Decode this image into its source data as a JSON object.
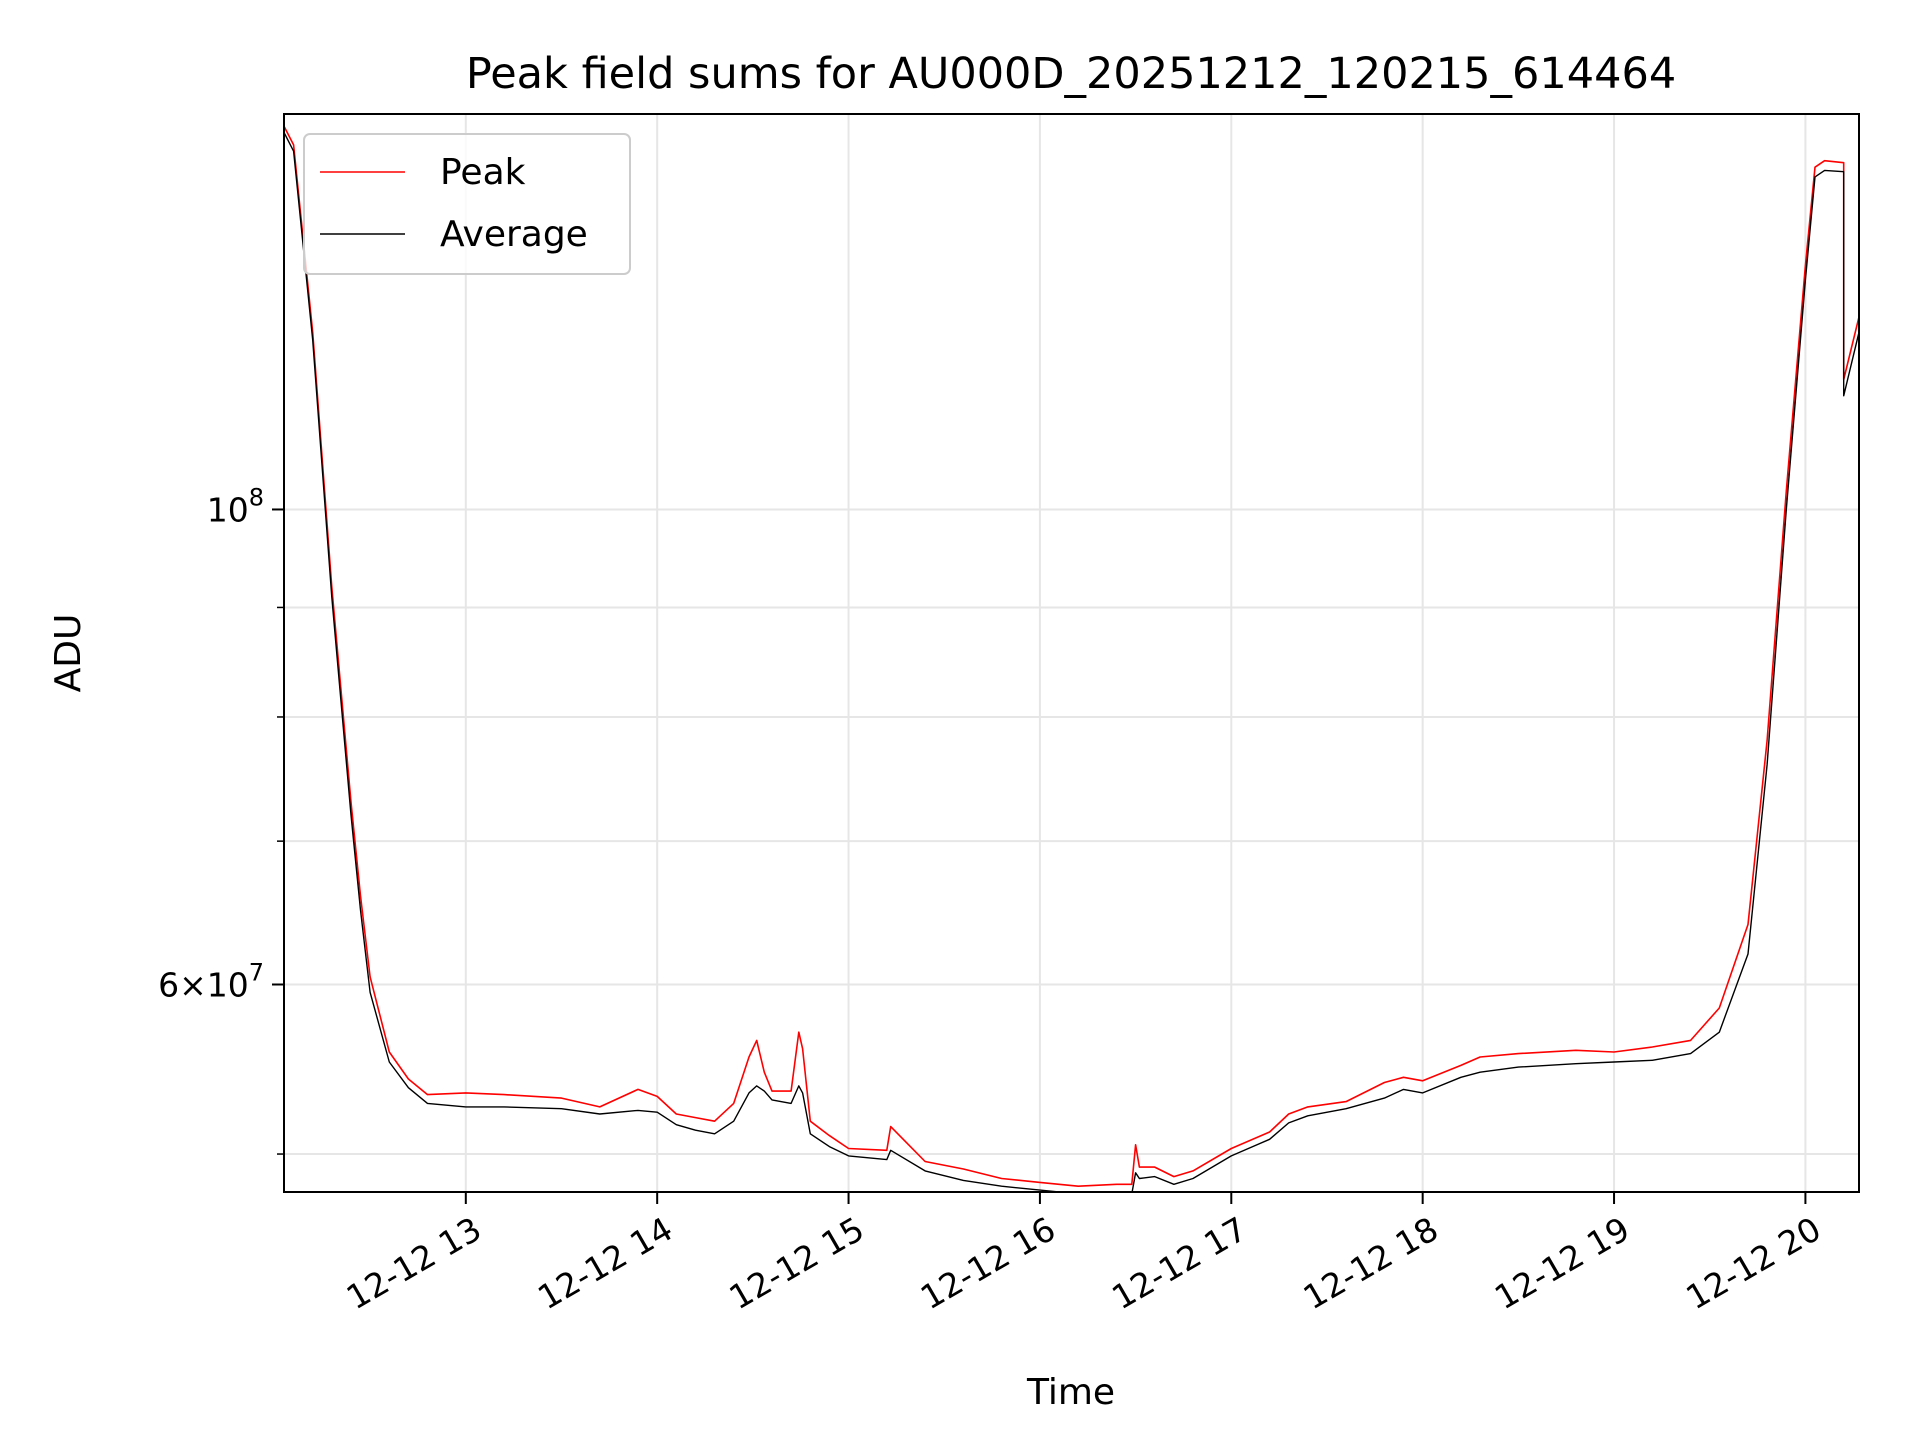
{
  "chart_data": {
    "type": "line",
    "title": "Peak field sums for AU000D_20251212_120215_614464",
    "xlabel": "Time",
    "ylabel": "ADU",
    "x_unit": "hours",
    "xlim": [
      12.05,
      20.28
    ],
    "ylim": [
      48000000,
      153000000
    ],
    "y_scale": "log",
    "grid": true,
    "legend_placement": "top-left",
    "x_ticks": [
      {
        "value": 13,
        "label": "12-12 13"
      },
      {
        "value": 14,
        "label": "12-12 14"
      },
      {
        "value": 15,
        "label": "12-12 15"
      },
      {
        "value": 16,
        "label": "12-12 16"
      },
      {
        "value": 17,
        "label": "12-12 17"
      },
      {
        "value": 18,
        "label": "12-12 18"
      },
      {
        "value": 19,
        "label": "12-12 19"
      },
      {
        "value": 20,
        "label": "12-12 20"
      }
    ],
    "y_major_ticks": [
      {
        "value": 60000000,
        "mantissa": "6",
        "exponent": "7"
      },
      {
        "value": 100000000,
        "mantissa": "",
        "exponent": "8"
      }
    ],
    "y_minor_ticks": [
      50000000,
      70000000,
      80000000,
      90000000
    ],
    "series": [
      {
        "name": "Peak",
        "color": "#ff0000",
        "x": [
          12.05,
          12.1,
          12.2,
          12.3,
          12.4,
          12.45,
          12.5,
          12.6,
          12.7,
          12.8,
          13.0,
          13.2,
          13.5,
          13.7,
          13.9,
          14.0,
          14.1,
          14.2,
          14.3,
          14.4,
          14.48,
          14.52,
          14.56,
          14.6,
          14.7,
          14.74,
          14.76,
          14.8,
          14.9,
          15.0,
          15.2,
          15.22,
          15.4,
          15.6,
          15.8,
          16.0,
          16.2,
          16.4,
          16.48,
          16.5,
          16.52,
          16.6,
          16.7,
          16.8,
          17.0,
          17.2,
          17.3,
          17.4,
          17.6,
          17.8,
          17.9,
          18.0,
          18.2,
          18.3,
          18.5,
          18.8,
          19.0,
          19.2,
          19.4,
          19.55,
          19.7,
          19.8,
          19.9,
          20.0,
          20.05,
          20.1,
          20.2,
          20.2,
          20.28
        ],
        "y": [
          151000000,
          148000000,
          121000000,
          92000000,
          73000000,
          66000000,
          60500000,
          55800000,
          54200000,
          53300000,
          53400000,
          53300000,
          53100000,
          52600000,
          53600000,
          53200000,
          52200000,
          52000000,
          51800000,
          52800000,
          55500000,
          56500000,
          54600000,
          53500000,
          53500000,
          57000000,
          56000000,
          51800000,
          51000000,
          50300000,
          50200000,
          51500000,
          49600000,
          49200000,
          48700000,
          48500000,
          48300000,
          48400000,
          48400000,
          50500000,
          49300000,
          49300000,
          48800000,
          49100000,
          50300000,
          51200000,
          52200000,
          52600000,
          52900000,
          54000000,
          54300000,
          54100000,
          55000000,
          55500000,
          55700000,
          55900000,
          55800000,
          56100000,
          56500000,
          58500000,
          64000000,
          78000000,
          102000000,
          130000000,
          144500000,
          145500000,
          145200000,
          115000000,
          123000000
        ]
      },
      {
        "name": "Average",
        "color": "#000000",
        "x": [
          12.05,
          12.1,
          12.2,
          12.3,
          12.4,
          12.45,
          12.5,
          12.6,
          12.7,
          12.8,
          13.0,
          13.2,
          13.5,
          13.7,
          13.9,
          14.0,
          14.1,
          14.2,
          14.3,
          14.4,
          14.48,
          14.52,
          14.56,
          14.6,
          14.7,
          14.74,
          14.76,
          14.8,
          14.9,
          15.0,
          15.2,
          15.22,
          15.4,
          15.6,
          15.8,
          16.0,
          16.2,
          16.4,
          16.48,
          16.5,
          16.52,
          16.6,
          16.7,
          16.8,
          17.0,
          17.2,
          17.3,
          17.4,
          17.6,
          17.8,
          17.9,
          18.0,
          18.2,
          18.3,
          18.5,
          18.8,
          19.0,
          19.2,
          19.4,
          19.55,
          19.7,
          19.8,
          19.9,
          20.0,
          20.05,
          20.1,
          20.2,
          20.2,
          20.28
        ],
        "y": [
          150000000,
          147000000,
          120000000,
          91000000,
          72000000,
          65000000,
          59500000,
          55200000,
          53700000,
          52800000,
          52600000,
          52600000,
          52500000,
          52200000,
          52400000,
          52300000,
          51600000,
          51300000,
          51100000,
          51800000,
          53400000,
          53800000,
          53500000,
          53000000,
          52800000,
          53800000,
          53400000,
          51100000,
          50400000,
          49900000,
          49700000,
          50200000,
          49100000,
          48600000,
          48300000,
          48100000,
          47900000,
          47900000,
          47900000,
          49000000,
          48700000,
          48800000,
          48400000,
          48700000,
          49900000,
          50800000,
          51700000,
          52100000,
          52500000,
          53100000,
          53600000,
          53400000,
          54300000,
          54600000,
          54900000,
          55100000,
          55200000,
          55300000,
          55700000,
          57000000,
          62000000,
          76000000,
          100000000,
          128000000,
          143000000,
          144000000,
          143800000,
          113000000,
          121000000
        ]
      }
    ]
  }
}
